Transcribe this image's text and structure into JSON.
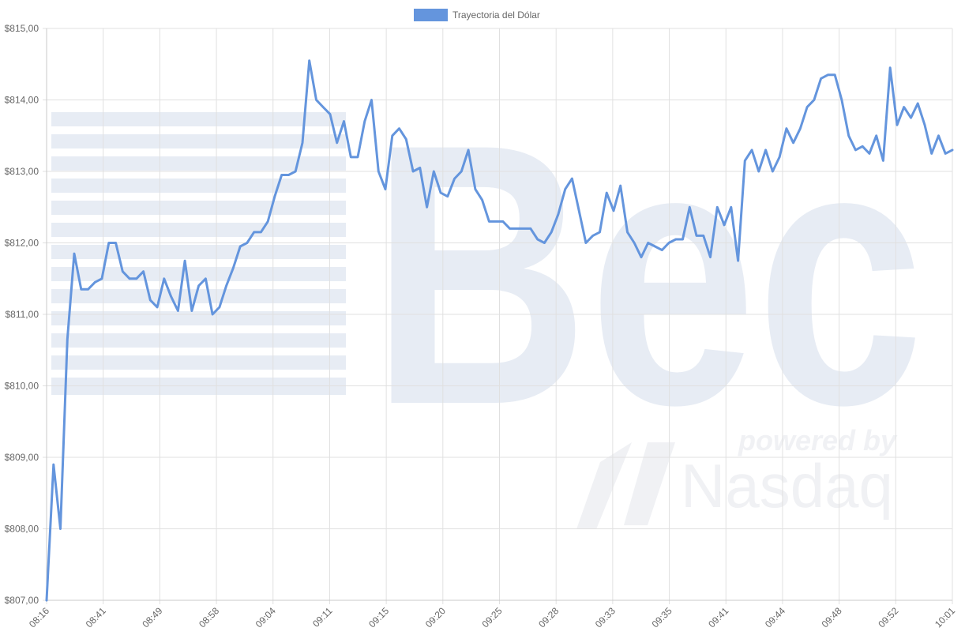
{
  "chart_data": {
    "type": "line",
    "legend": {
      "label": "Trayectoria del Dólar",
      "position": "top-center"
    },
    "series": [
      {
        "name": "Trayectoria del Dólar",
        "color": "#6495dd",
        "values": [
          807.0,
          808.9,
          808.0,
          810.65,
          811.85,
          811.35,
          811.35,
          811.45,
          811.5,
          812.0,
          812.0,
          811.6,
          811.5,
          811.5,
          811.6,
          811.2,
          811.1,
          811.5,
          811.25,
          811.05,
          811.75,
          811.05,
          811.4,
          811.5,
          811.0,
          811.1,
          811.4,
          811.65,
          811.95,
          812.0,
          812.15,
          812.15,
          812.3,
          812.65,
          812.95,
          812.95,
          813.0,
          813.4,
          814.55,
          814.0,
          813.9,
          813.8,
          813.4,
          813.7,
          813.2,
          813.2,
          813.7,
          814.0,
          813.0,
          812.75,
          813.5,
          813.6,
          813.45,
          813.0,
          813.05,
          812.5,
          813.0,
          812.7,
          812.65,
          812.9,
          813.0,
          813.3,
          812.75,
          812.6,
          812.3,
          812.3,
          812.3,
          812.2,
          812.2,
          812.2,
          812.2,
          812.05,
          812.0,
          812.15,
          812.4,
          812.75,
          812.9,
          812.45,
          812.0,
          812.1,
          812.15,
          812.7,
          812.45,
          812.8,
          812.15,
          812.0,
          811.8,
          812.0,
          811.95,
          811.9,
          812.0,
          812.05,
          812.05,
          812.5,
          812.1,
          812.1,
          811.8,
          812.5,
          812.25,
          812.5,
          811.75,
          813.15,
          813.3,
          813.0,
          813.3,
          813.0,
          813.2,
          813.6,
          813.4,
          813.6,
          813.9,
          814.0,
          814.3,
          814.35,
          814.35,
          814.0,
          813.5,
          813.3,
          813.35,
          813.25,
          813.5,
          813.15,
          814.45,
          813.65,
          813.9,
          813.75,
          813.95,
          813.65,
          813.25,
          813.5,
          813.25,
          813.3
        ]
      }
    ],
    "x_tick_labels": [
      "08:16",
      "08:41",
      "08:49",
      "08:58",
      "09:04",
      "09:11",
      "09:15",
      "09:20",
      "09:25",
      "09:28",
      "09:33",
      "09:35",
      "09:41",
      "09:44",
      "09:48",
      "09:52",
      "10:01"
    ],
    "y_tick_labels": [
      "$807,00",
      "$808,00",
      "$809,00",
      "$810,00",
      "$811,00",
      "$812,00",
      "$813,00",
      "$814,00",
      "$815,00"
    ],
    "ylim": [
      807,
      815
    ],
    "grid": true,
    "watermark": {
      "brand": "Bec",
      "powered_by": "powered by",
      "partner": "Nasdaq"
    }
  }
}
